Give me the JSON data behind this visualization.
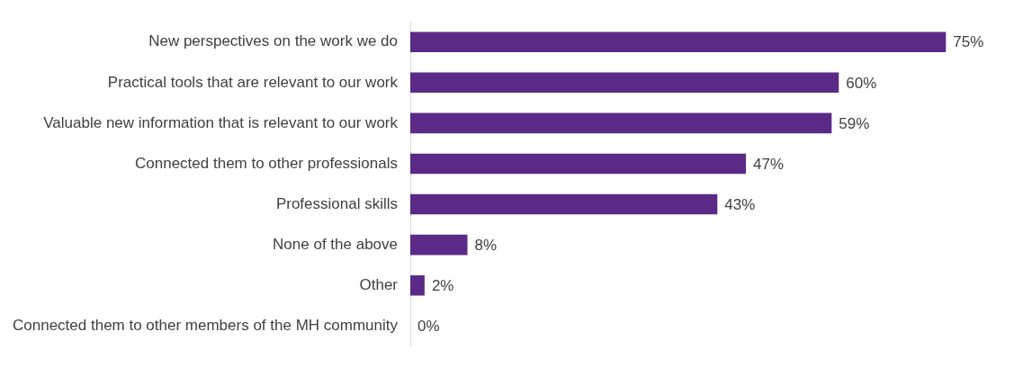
{
  "chart_data": {
    "type": "bar",
    "orientation": "horizontal",
    "categories": [
      "New perspectives on the work we do",
      "Practical tools that are relevant to our work",
      "Valuable new information that is relevant to our work",
      "Connected them to other professionals",
      "Professional skills",
      "None of the above",
      "Other",
      "Connected them to other members of the MH community"
    ],
    "values": [
      75,
      60,
      59,
      47,
      43,
      8,
      2,
      0
    ],
    "value_labels": [
      "75%",
      "60%",
      "59%",
      "47%",
      "43%",
      "8%",
      "2%",
      "0%"
    ],
    "color": "#5b2a86",
    "tick_labels": "y",
    "grid": false
  }
}
